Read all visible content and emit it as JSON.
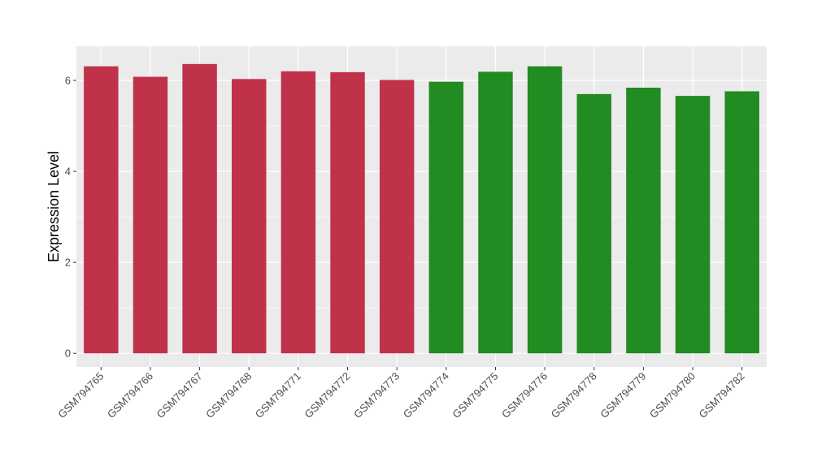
{
  "chart_data": {
    "type": "bar",
    "title": "",
    "xlabel": "",
    "ylabel": "Expression Level",
    "ylim": [
      -0.3,
      6.75
    ],
    "yticks": [
      0,
      2,
      4,
      6
    ],
    "grid": true,
    "legend": "none",
    "categories": [
      "GSM794765",
      "GSM794766",
      "GSM794767",
      "GSM794768",
      "GSM794771",
      "GSM794772",
      "GSM794773",
      "GSM794774",
      "GSM794775",
      "GSM794776",
      "GSM794778",
      "GSM794779",
      "GSM794780",
      "GSM794782"
    ],
    "values": [
      6.31,
      6.08,
      6.36,
      6.03,
      6.2,
      6.18,
      6.01,
      5.97,
      6.19,
      6.31,
      5.7,
      5.84,
      5.66,
      5.76
    ],
    "bar_colors": [
      "#c0324a",
      "#c0324a",
      "#c0324a",
      "#c0324a",
      "#c0324a",
      "#c0324a",
      "#c0324a",
      "#228b22",
      "#228b22",
      "#228b22",
      "#228b22",
      "#228b22",
      "#228b22",
      "#228b22"
    ],
    "panel_background": "#ebebeb",
    "grid_color": "#ffffff"
  }
}
